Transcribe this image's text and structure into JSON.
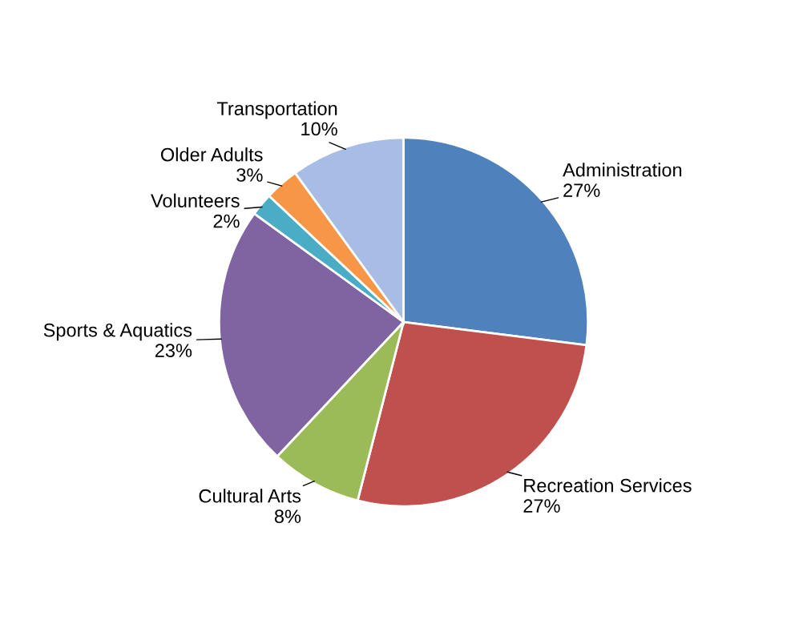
{
  "chart_data": {
    "type": "pie",
    "categories": [
      "Administration",
      "Recreation Services",
      "Cultural Arts",
      "Sports & Aquatics",
      "Volunteers",
      "Older Adults",
      "Transportation"
    ],
    "values": [
      27,
      27,
      8,
      23,
      2,
      3,
      10
    ],
    "value_labels": [
      "27%",
      "27%",
      "8%",
      "23%",
      "2%",
      "3%",
      "10%"
    ],
    "colors": [
      "#4f81bd",
      "#c0504d",
      "#9bbb59",
      "#8064a2",
      "#4bacc6",
      "#f79646",
      "#a7bde6"
    ]
  }
}
